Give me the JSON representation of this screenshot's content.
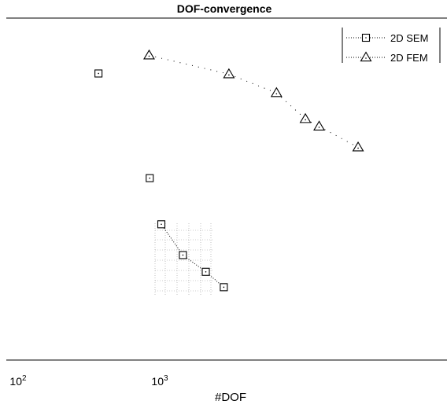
{
  "chart_data": {
    "type": "scatter",
    "title": "DOF-convergence",
    "xlabel": "#DOF",
    "ylabel": "",
    "x_scale": "log",
    "x_ticks": [
      {
        "value": 100,
        "base": "10",
        "exp": "2"
      },
      {
        "value": 1000,
        "base": "10",
        "exp": "3"
      }
    ],
    "xlim": [
      100,
      28000
    ],
    "ylim": [
      0,
      1
    ],
    "legend_position": "top-right",
    "series": [
      {
        "name": "2D SEM",
        "marker": "square",
        "line_style": "dotted",
        "color": "#000000",
        "x": [
          360,
          828,
          1000,
          1420,
          2060,
          2760
        ],
        "y": [
          0.838,
          0.532,
          0.397,
          0.307,
          0.258,
          0.213
        ]
      },
      {
        "name": "2D FEM",
        "marker": "triangle",
        "line_style": "dotted",
        "color": "#000000",
        "x": [
          820,
          3000,
          6500,
          10400,
          13000,
          24500
        ],
        "y": [
          0.891,
          0.836,
          0.781,
          0.705,
          0.683,
          0.622
        ]
      }
    ]
  }
}
